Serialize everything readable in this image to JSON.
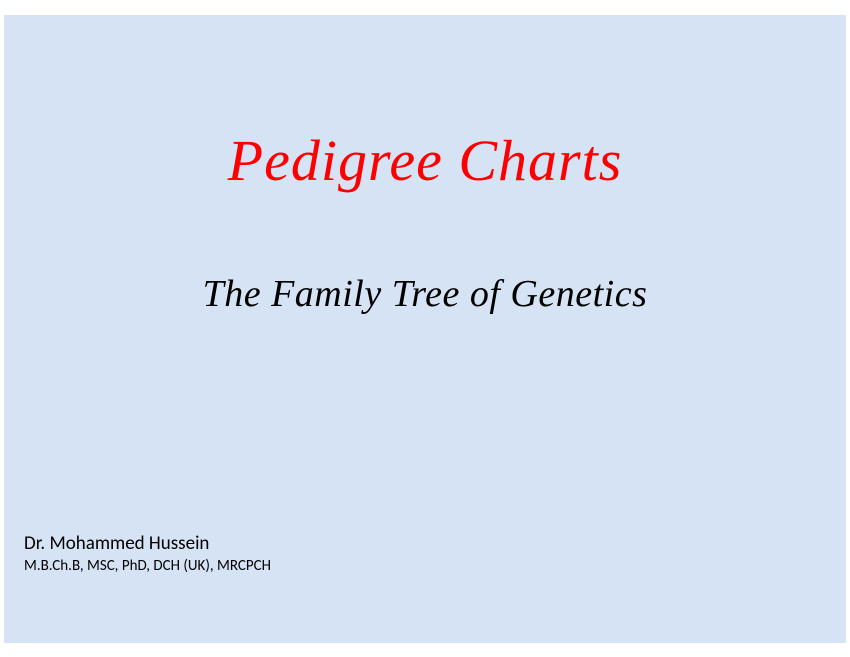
{
  "slide": {
    "title": "Pedigree Charts",
    "subtitle": "The Family Tree of Genetics",
    "author": {
      "name": "Dr. Mohammed Hussein",
      "credentials": "M.B.Ch.B, MSC, PhD, DCH (UK), MRCPCH"
    },
    "styling": {
      "background_color": "#d5e3f5",
      "title_color": "#ff0000",
      "title_fontsize": 58,
      "title_font_family": "Lucida Calligraphy",
      "subtitle_color": "#000000",
      "subtitle_fontsize": 38,
      "subtitle_font_family": "Lucida Calligraphy",
      "author_name_fontsize": 19,
      "author_credentials_fontsize": 15,
      "author_font_family": "Calibri",
      "slide_width": 842,
      "slide_height": 628
    }
  }
}
